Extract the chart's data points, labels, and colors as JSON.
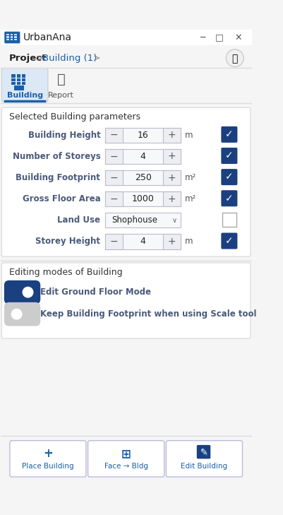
{
  "bg_color": "#f5f5f5",
  "panel_bg": "#ffffff",
  "title_bar_bg": "#ffffff",
  "blue": "#1a5fa8",
  "dark_blue": "#1a4f8a",
  "light_blue_bg": "#e8f0f8",
  "border_color": "#cccccc",
  "text_color": "#333333",
  "label_color": "#4a4a6a",
  "unit_color": "#555555",
  "app_title": "UrbanAna",
  "breadcrumb_project": "Project",
  "breadcrumb_building": "Building (1)",
  "tab1": "Building",
  "tab2": "Report",
  "section1_title": "Selected Building parameters",
  "params": [
    {
      "label": "Building Height",
      "value": "16",
      "unit": "m",
      "checked": true,
      "type": "spinner"
    },
    {
      "label": "Number of Storeys",
      "value": "4",
      "unit": "",
      "checked": true,
      "type": "spinner"
    },
    {
      "label": "Building Footprint",
      "value": "250",
      "unit": "m²",
      "checked": true,
      "type": "spinner"
    },
    {
      "label": "Gross Floor Area",
      "value": "1000",
      "unit": "m²",
      "checked": true,
      "type": "spinner"
    },
    {
      "label": "Land Use",
      "value": "Shophouse",
      "unit": "",
      "checked": false,
      "type": "dropdown"
    },
    {
      "label": "Storey Height",
      "value": "4",
      "unit": "m",
      "checked": true,
      "type": "spinner"
    }
  ],
  "section2_title": "Editing modes of Building",
  "toggle1_label": "Edit Ground Floor Mode",
  "toggle1_on": true,
  "toggle2_label": "Keep Building Footprint when using Scale tool",
  "toggle2_on": false,
  "btn1_label": "Place Building",
  "btn2_label": "Face → Bldg",
  "btn3_label": "Edit Building"
}
